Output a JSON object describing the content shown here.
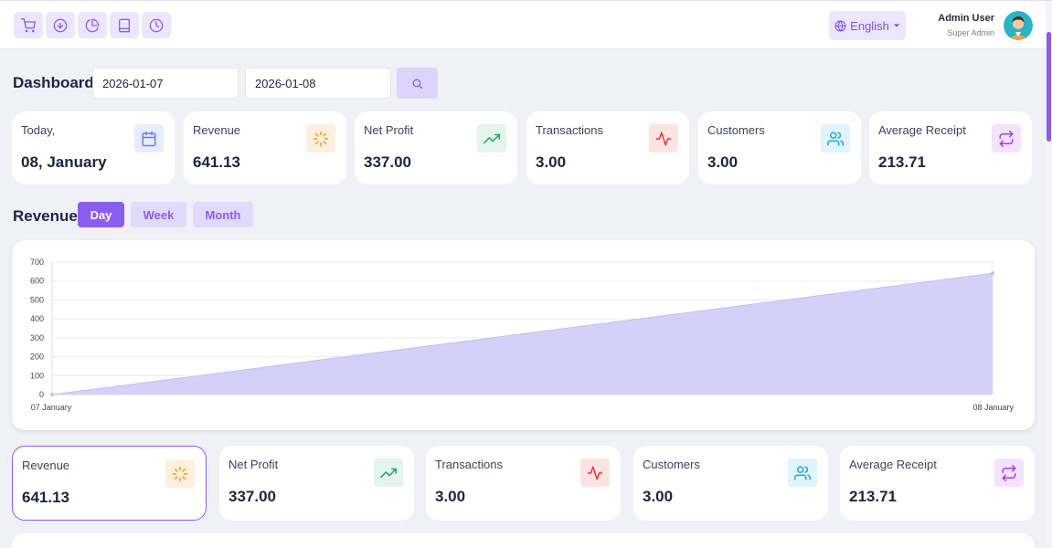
{
  "toolbar": {
    "icons": [
      "cart-icon",
      "download-icon",
      "pie-chart-icon",
      "book-icon",
      "clock-icon"
    ]
  },
  "language": {
    "label": "English"
  },
  "user": {
    "name": "Admin User",
    "role": "Super Admin"
  },
  "filters": {
    "title": "Dashboard",
    "date_from": "2026-01-07",
    "date_to": "2026-01-08"
  },
  "summary_cards": [
    {
      "label": "Today,",
      "value": "08, January",
      "icon": "calendar-icon",
      "color": "#6b7cf0",
      "bg": "#e8ecfd"
    },
    {
      "label": "Revenue",
      "value": "641.13",
      "icon": "loader-icon",
      "color": "#f59e0b",
      "bg": "#fdf0df"
    },
    {
      "label": "Net Profit",
      "value": "337.00",
      "icon": "trending-up-icon",
      "color": "#22a06b",
      "bg": "#e3f5ec"
    },
    {
      "label": "Transactions",
      "value": "3.00",
      "icon": "activity-icon",
      "color": "#e5333b",
      "bg": "#fde4e4"
    },
    {
      "label": "Customers",
      "value": "3.00",
      "icon": "users-icon",
      "color": "#1ea7d6",
      "bg": "#e1f4fb"
    },
    {
      "label": "Average Receipt",
      "value": "213.71",
      "icon": "repeat-icon",
      "color": "#a33fe0",
      "bg": "#f3e3fc"
    }
  ],
  "revenue": {
    "title": "Revenue",
    "tabs": [
      {
        "label": "Day",
        "active": true
      },
      {
        "label": "Week",
        "active": false
      },
      {
        "label": "Month",
        "active": false
      }
    ]
  },
  "chart_data": {
    "type": "area",
    "categories": [
      "07 January",
      "08 January"
    ],
    "values": [
      0,
      641.13
    ],
    "ylim": [
      0,
      700
    ],
    "yticks": [
      "0",
      "100",
      "200",
      "300",
      "400",
      "500",
      "600",
      "700"
    ],
    "grid": true,
    "fill_color": "#d4d0f8",
    "line_color": "#c4bff2"
  },
  "metric_cards": [
    {
      "label": "Revenue",
      "value": "641.13",
      "icon": "loader-icon",
      "color": "#f59e0b",
      "bg": "#fdf0df",
      "selected": true
    },
    {
      "label": "Net Profit",
      "value": "337.00",
      "icon": "trending-up-icon",
      "color": "#22a06b",
      "bg": "#e3f5ec",
      "selected": false
    },
    {
      "label": "Transactions",
      "value": "3.00",
      "icon": "activity-icon",
      "color": "#e5333b",
      "bg": "#fde4e4",
      "selected": false
    },
    {
      "label": "Customers",
      "value": "3.00",
      "icon": "users-icon",
      "color": "#1ea7d6",
      "bg": "#e1f4fb",
      "selected": false
    },
    {
      "label": "Average Receipt",
      "value": "213.71",
      "icon": "repeat-icon",
      "color": "#a33fe0",
      "bg": "#f3e3fc",
      "selected": false
    }
  ],
  "theme": {
    "accent": "#8a5cf0"
  }
}
